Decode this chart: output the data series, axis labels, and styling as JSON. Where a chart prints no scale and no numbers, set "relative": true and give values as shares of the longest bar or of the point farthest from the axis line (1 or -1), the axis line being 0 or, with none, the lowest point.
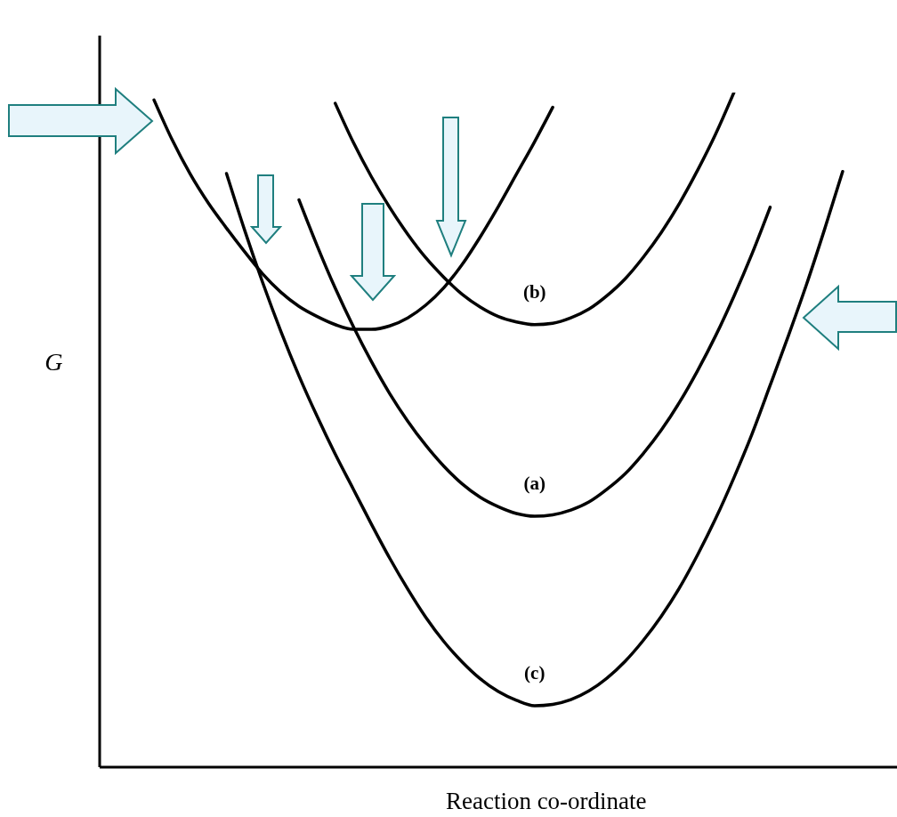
{
  "chart_data": {
    "type": "line",
    "relative": true,
    "xlabel": "Reaction co-ordinate",
    "ylabel": "G",
    "line_style": "solid",
    "categories": [
      null,
      null,
      null,
      null,
      null,
      null,
      null,
      null,
      null,
      null,
      null,
      null,
      null,
      null,
      null,
      null,
      null,
      null,
      null,
      null,
      null,
      null,
      null,
      null,
      null,
      null,
      null,
      null,
      null,
      null,
      null,
      null,
      null,
      null,
      null,
      null,
      null,
      null,
      null,
      null,
      null,
      null,
      null,
      null,
      null
    ],
    "series": [
      {
        "color": "#000000",
        "values": [
          null,
          null,
          null,
          0.989,
          0.93,
          0.879,
          0.836,
          0.799,
          0.764,
          0.731,
          0.704,
          0.683,
          0.668,
          0.656,
          0.649,
          0.649,
          0.654,
          0.666,
          0.685,
          0.711,
          0.745,
          0.786,
          0.831,
          0.879,
          0.927,
          0.978,
          null,
          null,
          null,
          null,
          null,
          null,
          null,
          null,
          null,
          null,
          null,
          null,
          null,
          null,
          null,
          null,
          null,
          null,
          null
        ]
      },
      {
        "name": "(b)",
        "color": "#000000",
        "values": [
          null,
          null,
          null,
          null,
          null,
          null,
          null,
          null,
          null,
          null,
          null,
          null,
          null,
          0.984,
          0.926,
          0.875,
          0.83,
          0.79,
          0.755,
          0.726,
          0.701,
          0.682,
          0.668,
          0.66,
          0.656,
          0.658,
          0.666,
          0.679,
          0.699,
          0.724,
          0.756,
          0.793,
          0.836,
          0.885,
          0.939,
          1,
          null,
          null,
          null,
          null,
          null,
          null,
          null,
          null,
          null
        ]
      },
      {
        "name": "(a)",
        "color": "#000000",
        "values": [
          null,
          null,
          null,
          null,
          null,
          null,
          null,
          null,
          null,
          null,
          null,
          0.841,
          0.773,
          0.71,
          0.653,
          0.601,
          0.554,
          0.513,
          0.477,
          0.446,
          0.42,
          0.4,
          0.386,
          0.376,
          0.372,
          0.374,
          0.381,
          0.393,
          0.412,
          0.435,
          0.465,
          0.5,
          0.541,
          0.588,
          0.64,
          0.698,
          0.761,
          0.83,
          null,
          null,
          null,
          null,
          null,
          null,
          null
        ]
      },
      {
        "name": "(c)",
        "color": "#000000",
        "values": [
          null,
          null,
          null,
          null,
          null,
          null,
          null,
          0.88,
          0.796,
          0.718,
          0.646,
          0.58,
          0.52,
          0.464,
          0.412,
          0.36,
          0.31,
          0.264,
          0.222,
          0.186,
          0.156,
          0.131,
          0.112,
          0.099,
          0.091,
          0.093,
          0.1,
          0.113,
          0.132,
          0.157,
          0.188,
          0.224,
          0.266,
          0.315,
          0.369,
          0.429,
          0.494,
          0.566,
          0.639,
          0.715,
          0.797,
          0.883,
          null,
          null,
          null
        ]
      }
    ]
  }
}
